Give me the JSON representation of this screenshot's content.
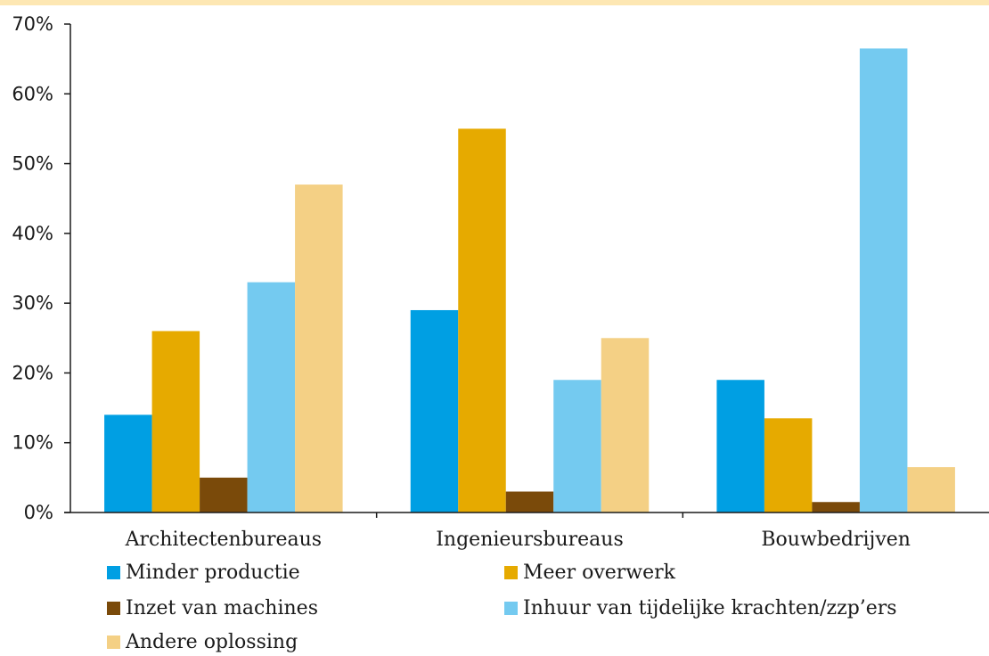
{
  "chart_data": {
    "type": "bar",
    "categories": [
      "Architectenbureaus",
      "Ingenieursbureaus",
      "Bouwbedrijven"
    ],
    "series": [
      {
        "name": "Minder productie",
        "values": [
          14,
          29,
          19
        ],
        "color": "#009fe3"
      },
      {
        "name": "Meer overwerk",
        "values": [
          26,
          55,
          13.5
        ],
        "color": "#e6aa00"
      },
      {
        "name": "Inzet van machines",
        "values": [
          5,
          3,
          1.5
        ],
        "color": "#7a4a0a"
      },
      {
        "name": "Inhuur van tijdelijke krachten/zzp’ers",
        "values": [
          33,
          19,
          66.5
        ],
        "color": "#74caf0"
      },
      {
        "name": "Andere oplossing",
        "values": [
          47,
          25,
          6.5
        ],
        "color": "#f4d085"
      }
    ],
    "ylim": [
      0,
      70
    ],
    "yticks": [
      "0%",
      "10%",
      "20%",
      "30%",
      "40%",
      "50%",
      "60%",
      "70%"
    ],
    "grid": false,
    "legend_position": "bottom"
  }
}
